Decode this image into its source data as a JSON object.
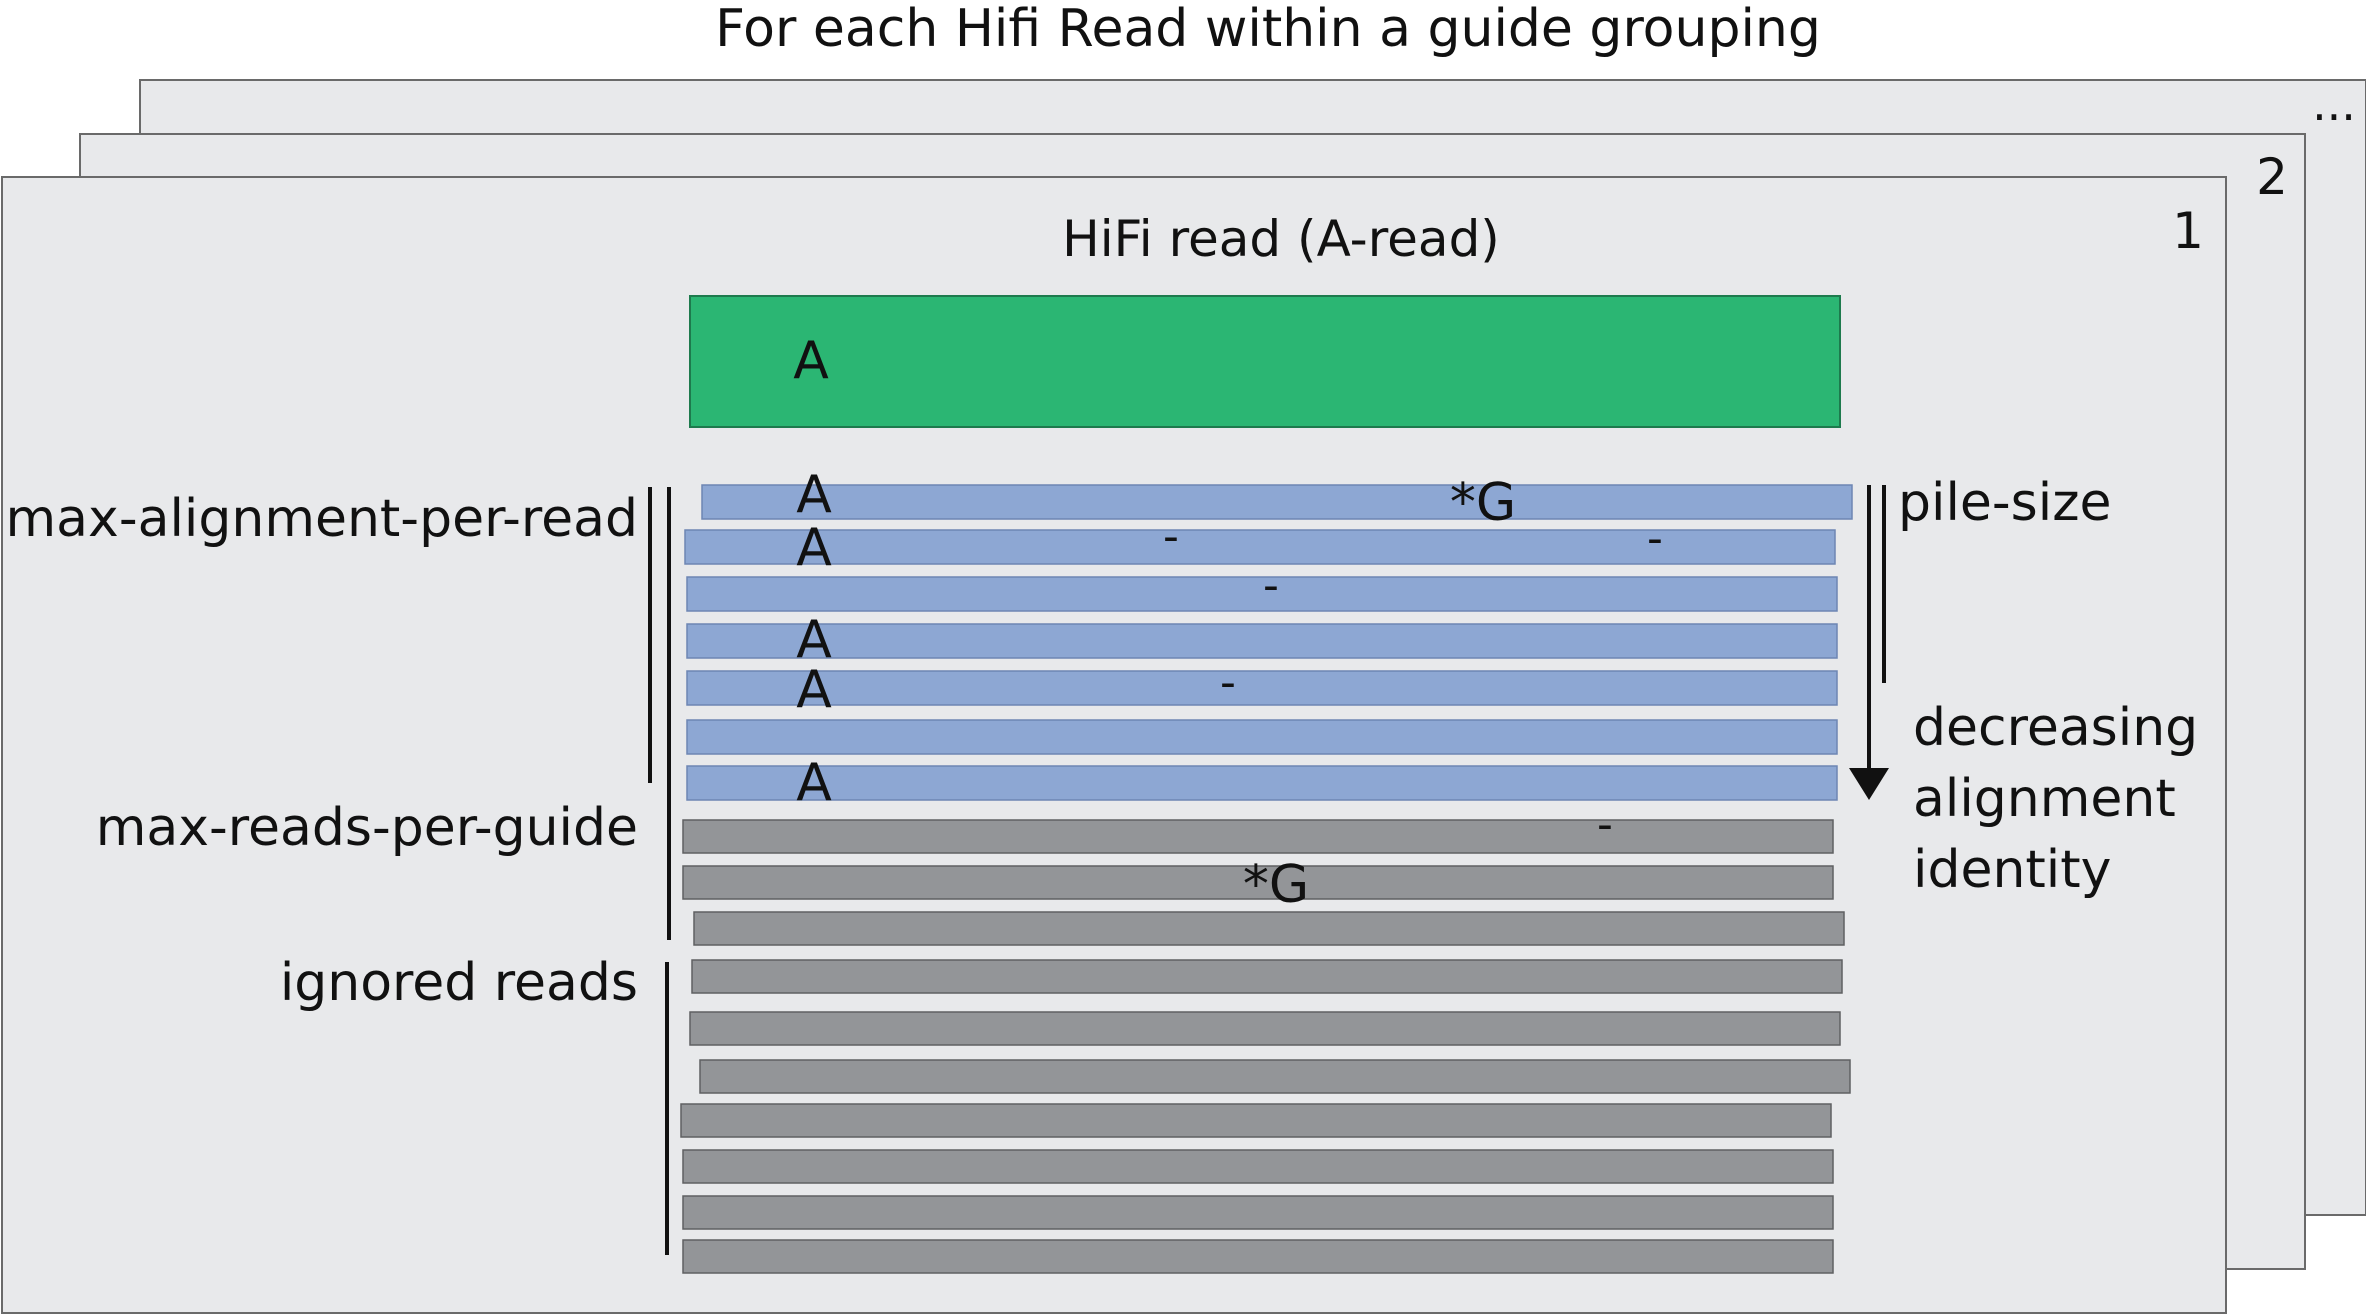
{
  "title": "For each Hifi Read within a guide grouping",
  "panels": {
    "back_label": "...",
    "middle_label": "2",
    "front_label": "1"
  },
  "hifi_read": {
    "title": "HiFi read (A-read)",
    "base": "A"
  },
  "labels": {
    "max_alignment": "max-alignment-per-read",
    "max_reads": "max-reads-per-guide",
    "ignored": "ignored reads",
    "pile_size": "pile-size",
    "decreasing_1": "decreasing",
    "decreasing_2": "alignment",
    "decreasing_3": "identity"
  },
  "marks": {
    "a": "A",
    "star_g": "*G",
    "gap": "-"
  },
  "colors": {
    "panel_fill": "#e8e9eb",
    "panel_stroke": "#6a6a6a",
    "hifi_green": "#2bb673",
    "aligned_blue": "#8da7d3",
    "read_gray": "#939598"
  }
}
